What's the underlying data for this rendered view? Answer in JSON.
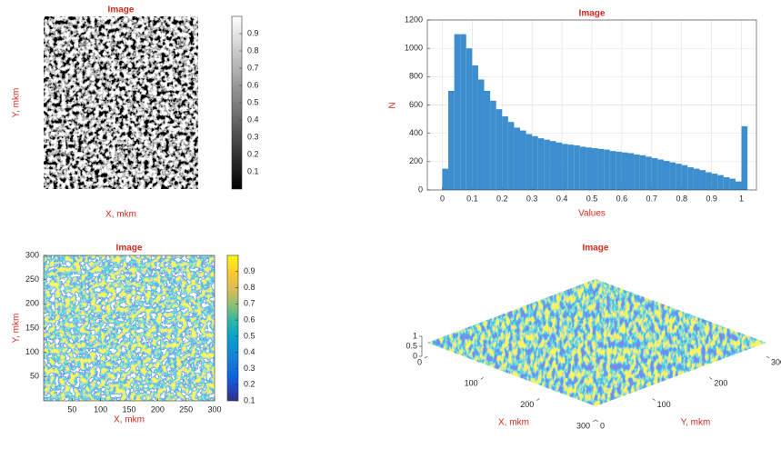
{
  "chart_data": [
    {
      "type": "image",
      "title": "Image",
      "xlabel": "X, mkm",
      "ylabel": "Y, mkm",
      "colormap": "gray",
      "colorbar": {
        "lim": [
          0,
          1
        ],
        "ticks": [
          0.1,
          0.2,
          0.3,
          0.4,
          0.5,
          0.6,
          0.7,
          0.8,
          0.9
        ]
      }
    },
    {
      "type": "histogram",
      "title": "Image",
      "xlabel": "Values",
      "ylabel": "N",
      "color": "#3d8ecf",
      "bins": [
        0,
        0.02,
        0.04,
        0.06,
        0.08,
        0.1,
        0.12,
        0.14,
        0.16,
        0.18,
        0.2,
        0.22,
        0.24,
        0.26,
        0.28,
        0.3,
        0.32,
        0.34,
        0.36,
        0.38,
        0.4,
        0.42,
        0.44,
        0.46,
        0.48,
        0.5,
        0.52,
        0.54,
        0.56,
        0.58,
        0.6,
        0.62,
        0.64,
        0.66,
        0.68,
        0.7,
        0.72,
        0.74,
        0.76,
        0.78,
        0.8,
        0.82,
        0.84,
        0.86,
        0.88,
        0.9,
        0.92,
        0.94,
        0.96,
        0.98,
        1.0,
        1.02
      ],
      "values": [
        150,
        700,
        1100,
        1100,
        1000,
        880,
        780,
        700,
        630,
        570,
        520,
        480,
        440,
        420,
        395,
        380,
        365,
        355,
        345,
        335,
        325,
        320,
        315,
        305,
        300,
        295,
        290,
        285,
        275,
        270,
        265,
        260,
        250,
        245,
        235,
        225,
        215,
        205,
        195,
        185,
        175,
        160,
        150,
        140,
        125,
        115,
        105,
        90,
        80,
        60,
        450
      ],
      "xlim": [
        -0.05,
        1.05
      ],
      "ylim": [
        0,
        1200
      ],
      "xticks": [
        0,
        0.1,
        0.2,
        0.3,
        0.4,
        0.5,
        0.6,
        0.7,
        0.8,
        0.9,
        1
      ],
      "yticks": [
        0,
        200,
        400,
        600,
        800,
        1000,
        1200
      ],
      "grid": true
    },
    {
      "type": "contour",
      "title": "Image",
      "xlabel": "X, mkm",
      "ylabel": "Y, mkm",
      "colormap": "parula",
      "xlim": [
        0,
        300
      ],
      "ylim": [
        0,
        300
      ],
      "xticks": [
        50,
        100,
        150,
        200,
        250,
        300
      ],
      "yticks": [
        50,
        100,
        150,
        200,
        250,
        300
      ],
      "colorbar": {
        "lim": [
          0.1,
          1
        ],
        "ticks": [
          0.1,
          0.2,
          0.3,
          0.4,
          0.5,
          0.6,
          0.7,
          0.8,
          0.9
        ]
      }
    },
    {
      "type": "surface",
      "title": "Image",
      "xlabel": "X, mkm",
      "ylabel": "Y, mkm",
      "colormap": "parula",
      "xlim": [
        0,
        300
      ],
      "ylim": [
        0,
        300
      ],
      "zlim": [
        0,
        1
      ],
      "xticks": [
        0,
        100,
        200,
        300
      ],
      "yticks": [
        0,
        100,
        200,
        300
      ],
      "zticks": [
        0,
        0.5,
        1
      ]
    }
  ]
}
